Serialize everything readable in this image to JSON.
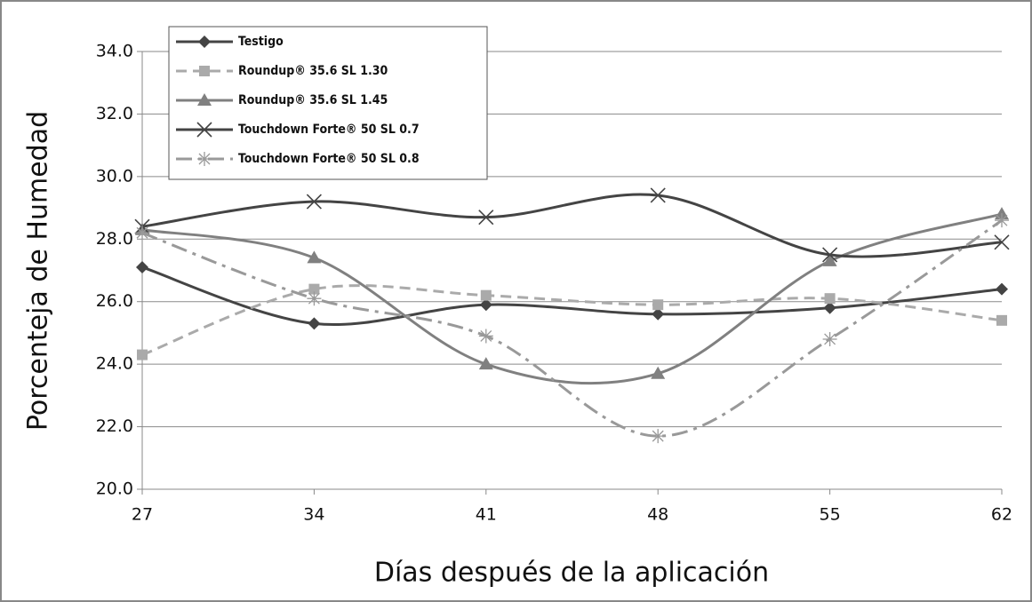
{
  "chart_data": {
    "type": "line",
    "x_label": "Días después de la aplicación",
    "y_label": "Porcenteja de Humedad",
    "x": [
      27,
      34,
      41,
      48,
      55,
      62
    ],
    "xlim": [
      27,
      62
    ],
    "xticks": [
      27,
      34,
      41,
      48,
      55,
      62
    ],
    "ylim": [
      20,
      34
    ],
    "yticks": [
      {
        "value": 20,
        "label": "20.0"
      },
      {
        "value": 22,
        "label": "22.0"
      },
      {
        "value": 24,
        "label": "24.0"
      },
      {
        "value": 26,
        "label": "26.0"
      },
      {
        "value": 28,
        "label": "28.0"
      },
      {
        "value": 30,
        "label": "30.0"
      },
      {
        "value": 32,
        "label": "32.0"
      },
      {
        "value": 34,
        "label": "34.0"
      }
    ],
    "grid": true,
    "legend": "upper left",
    "series": [
      {
        "name": "Testigo",
        "color": "#444444",
        "marker": "diamond",
        "dash": "solid",
        "values": [
          27.1,
          25.3,
          25.9,
          25.6,
          25.8,
          26.4
        ]
      },
      {
        "name": "Roundup® 35.6 SL 1.30",
        "color": "#aaaaaa",
        "marker": "square",
        "dash": "dashed",
        "values": [
          24.3,
          26.4,
          26.2,
          25.9,
          26.1,
          25.4
        ]
      },
      {
        "name": "Roundup® 35.6 SL 1.45",
        "color": "#808080",
        "marker": "triangle",
        "dash": "solid",
        "values": [
          28.3,
          27.4,
          24.0,
          23.7,
          27.3,
          28.8
        ]
      },
      {
        "name": "Touchdown Forte® 50 SL 0.7",
        "color": "#444444",
        "marker": "x",
        "dash": "solid",
        "values": [
          28.4,
          29.2,
          28.7,
          29.4,
          27.5,
          27.9
        ]
      },
      {
        "name": "Touchdown Forte® 50 SL 0.8",
        "color": "#999999",
        "marker": "star",
        "dash": "dashdot",
        "values": [
          28.2,
          26.1,
          24.9,
          21.7,
          24.8,
          28.6
        ]
      }
    ]
  }
}
